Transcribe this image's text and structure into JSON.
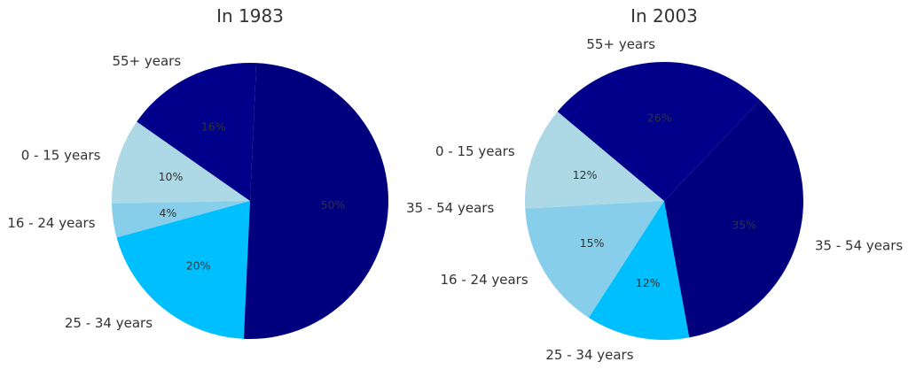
{
  "chart_data": [
    {
      "type": "pie",
      "title": "In 1983",
      "categories": [
        "0 - 15 years",
        "16 - 24 years",
        "25 - 34 years",
        "35 - 54 years",
        "55+ years"
      ],
      "values": [
        10,
        4,
        20,
        50,
        16
      ],
      "value_labels": [
        "10%",
        "4%",
        "20%",
        "50%",
        "16%"
      ],
      "colors": [
        "#add8e6",
        "#87ceeb",
        "#00bfff",
        "#00007f",
        "#00008b"
      ],
      "start_angle_deg": 145,
      "direction": "counterclockwise",
      "legend": "none"
    },
    {
      "type": "pie",
      "title": "In 2003",
      "categories": [
        "0 - 15 years",
        "16 - 24 years",
        "25 - 34 years",
        "35 - 54 years",
        "55+ years"
      ],
      "values": [
        12,
        15,
        12,
        35,
        26
      ],
      "value_labels": [
        "12%",
        "15%",
        "12%",
        "35%",
        "26%"
      ],
      "colors": [
        "#add8e6",
        "#87ceeb",
        "#00bfff",
        "#00007f",
        "#00008b"
      ],
      "start_angle_deg": 140,
      "direction": "counterclockwise",
      "legend": "none"
    }
  ]
}
